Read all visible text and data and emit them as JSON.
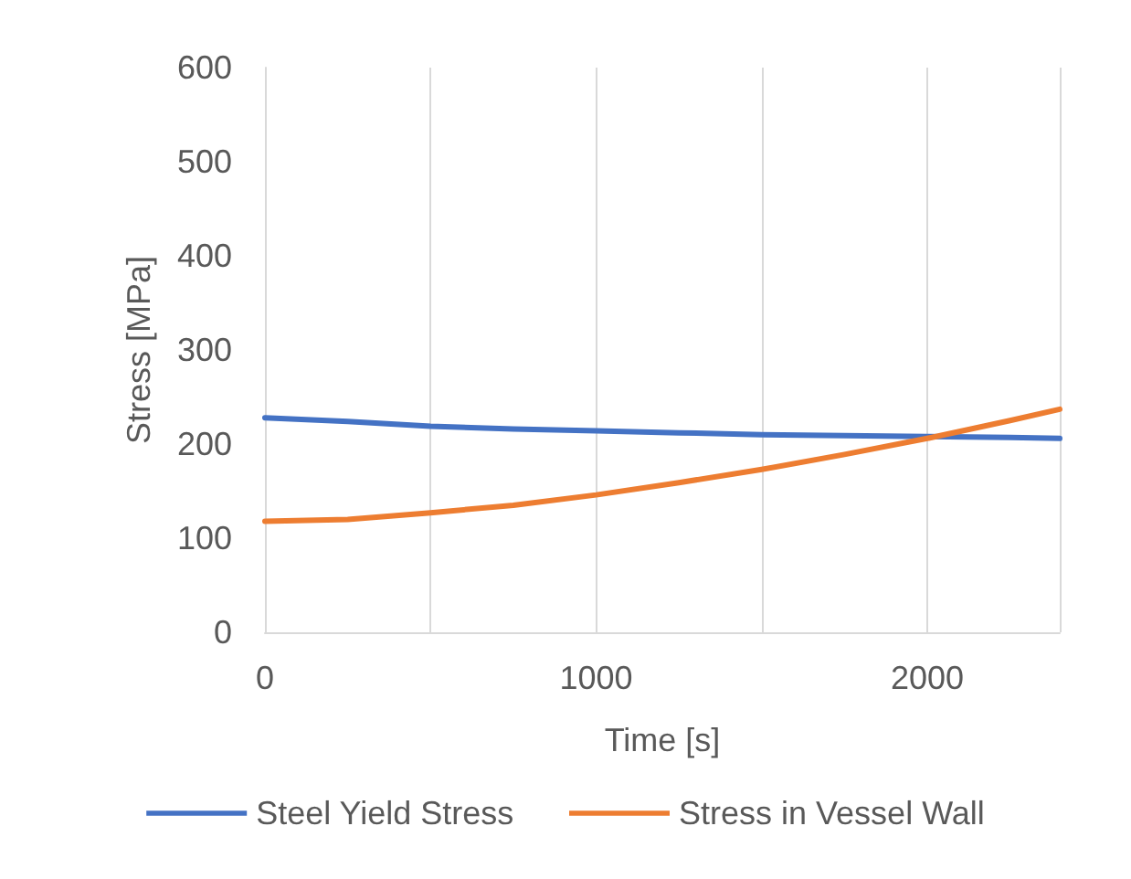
{
  "chart_data": {
    "type": "line",
    "xlabel": "Time [s]",
    "ylabel": "Stress [MPa]",
    "xlim": [
      0,
      2400
    ],
    "xticks": [
      0,
      1000,
      2000
    ],
    "ylim": [
      0,
      600
    ],
    "yticks": [
      0,
      100,
      200,
      300,
      400,
      500,
      600
    ],
    "grid": "x",
    "legend": "bottom",
    "marker": "none",
    "line_style": "solid",
    "series": [
      {
        "name": "Steel Yield Stress",
        "color": "#4472c4",
        "x": [
          0,
          250,
          500,
          750,
          1000,
          1250,
          1500,
          1750,
          2000,
          2250,
          2400
        ],
        "values": [
          228,
          224,
          219,
          216,
          214,
          212,
          210,
          209,
          208,
          207,
          206
        ]
      },
      {
        "name": "Stress in Vessel Wall",
        "color": "#ed7d31",
        "x": [
          0,
          250,
          500,
          750,
          1000,
          1250,
          1500,
          1750,
          2000,
          2250,
          2400
        ],
        "values": [
          118,
          120,
          127,
          135,
          146,
          159,
          173,
          189,
          206,
          225,
          237
        ]
      }
    ]
  }
}
